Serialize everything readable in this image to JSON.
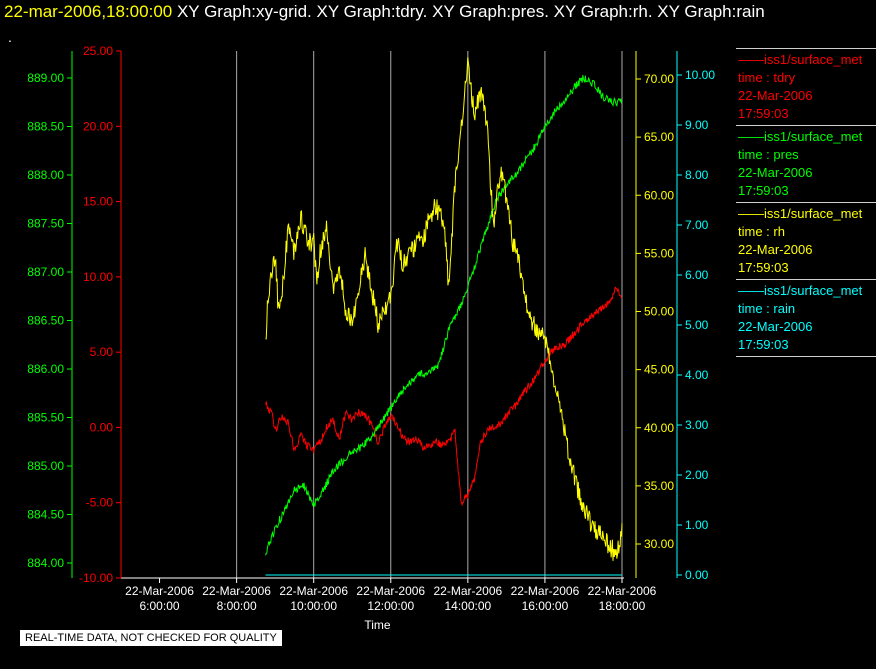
{
  "header": {
    "timestamp": "22-mar-2006,18:00:00",
    "graphs": "XY Graph:xy-grid.  XY Graph:tdry.  XY Graph:pres.  XY Graph:rh.  XY Graph:rain",
    "dot": "."
  },
  "note": "REAL-TIME DATA, NOT CHECKED FOR QUALITY",
  "colors": {
    "tdry": "#ff0000",
    "pres": "#00ff00",
    "rh": "#ffff00",
    "rain": "#00ffff",
    "grid": "#aaaaaa",
    "bottom_axis": "#ffffff"
  },
  "legend": [
    {
      "line1": "iss1/surface_met",
      "line2": "time : tdry",
      "line3": "22-Mar-2006",
      "line4": "17:59:03",
      "color": "#ff0000"
    },
    {
      "line1": "iss1/surface_met",
      "line2": "time : pres",
      "line3": "22-Mar-2006",
      "line4": "17:59:03",
      "color": "#00ff00"
    },
    {
      "line1": "iss1/surface_met",
      "line2": "time : rh",
      "line3": "22-Mar-2006",
      "line4": "17:59:03",
      "color": "#ffff00"
    },
    {
      "line1": "iss1/surface_met",
      "line2": "time : rain",
      "line3": "22-Mar-2006",
      "line4": "17:59:03",
      "color": "#00ffff"
    }
  ],
  "chart_data": {
    "type": "line",
    "xlabel": "Time",
    "x_range": [
      "22-Mar-2006 05:00:00",
      "22-Mar-2006 18:00:00"
    ],
    "x_ticks": [
      {
        "date": "22-Mar-2006",
        "time": "6:00:00"
      },
      {
        "date": "22-Mar-2006",
        "time": "8:00:00"
      },
      {
        "date": "22-Mar-2006",
        "time": "10:00:00"
      },
      {
        "date": "22-Mar-2006",
        "time": "12:00:00"
      },
      {
        "date": "22-Mar-2006",
        "time": "14:00:00"
      },
      {
        "date": "22-Mar-2006",
        "time": "16:00:00"
      },
      {
        "date": "22-Mar-2006",
        "time": "18:00:00"
      }
    ],
    "grid": "vertical",
    "axes": [
      {
        "series": "pres",
        "side": "left",
        "ylim": [
          883.9,
          889.2
        ],
        "ticks": [
          "884.00",
          "884.50",
          "885.00",
          "885.50",
          "886.00",
          "886.50",
          "887.00",
          "887.50",
          "888.00",
          "888.50",
          "889.00"
        ]
      },
      {
        "series": "tdry",
        "side": "left",
        "ylim": [
          -10.0,
          25.0
        ],
        "ticks": [
          "-10.00",
          "-5.00",
          "0.00",
          "5.00",
          "10.00",
          "15.00",
          "20.00",
          "25.00"
        ]
      },
      {
        "series": "rh",
        "side": "right",
        "ylim": [
          27.2,
          72.7
        ],
        "ticks": [
          "30.00",
          "35.00",
          "40.00",
          "45.00",
          "50.00",
          "55.00",
          "60.00",
          "65.00",
          "70.00"
        ]
      },
      {
        "series": "rain",
        "side": "right",
        "ylim": [
          0.0,
          10.35
        ],
        "ticks": [
          "0.00",
          "1.00",
          "2.00",
          "3.00",
          "4.00",
          "5.00",
          "6.00",
          "7.00",
          "8.00",
          "9.00",
          "10.00"
        ]
      }
    ],
    "series": [
      {
        "key": "tdry",
        "x": [
          "08:45",
          "08:55",
          "09:00",
          "09:10",
          "09:20",
          "09:30",
          "09:40",
          "09:50",
          "10:00",
          "10:10",
          "10:20",
          "10:30",
          "10:40",
          "10:50",
          "11:00",
          "11:10",
          "11:20",
          "11:30",
          "11:40",
          "11:50",
          "12:00",
          "12:10",
          "12:20",
          "12:30",
          "12:40",
          "12:50",
          "13:00",
          "13:10",
          "13:20",
          "13:30",
          "13:40",
          "13:45",
          "13:50",
          "14:00",
          "14:10",
          "14:20",
          "14:30",
          "14:40",
          "14:50",
          "15:00",
          "15:15",
          "15:30",
          "15:45",
          "16:00",
          "16:15",
          "16:30",
          "16:45",
          "17:00",
          "17:15",
          "17:30",
          "17:45",
          "17:50",
          "17:55",
          "18:00"
        ],
        "y": [
          1.5,
          1.0,
          -0.2,
          0.8,
          0.3,
          -1.5,
          -0.5,
          -1.2,
          -1.5,
          -1.0,
          0.0,
          0.5,
          -0.8,
          1.0,
          0.5,
          1.0,
          0.8,
          0.2,
          -1.0,
          0.0,
          0.8,
          0.2,
          -0.7,
          -1.0,
          -0.8,
          -1.3,
          -1.2,
          -0.9,
          -1.2,
          -1.0,
          -0.2,
          -3.0,
          -5.0,
          -4.5,
          -3.5,
          -1.0,
          -0.2,
          0.0,
          0.2,
          0.8,
          1.5,
          2.5,
          3.3,
          4.5,
          5.2,
          5.5,
          6.2,
          7.0,
          7.5,
          8.0,
          8.5,
          9.3,
          9.0,
          8.6
        ]
      },
      {
        "key": "pres",
        "x": [
          "08:45",
          "09:00",
          "09:15",
          "09:30",
          "09:45",
          "10:00",
          "10:15",
          "10:30",
          "10:45",
          "11:00",
          "11:15",
          "11:30",
          "11:45",
          "12:00",
          "12:15",
          "12:30",
          "12:45",
          "13:00",
          "13:15",
          "13:30",
          "13:45",
          "14:00",
          "14:15",
          "14:30",
          "14:45",
          "15:00",
          "15:15",
          "15:30",
          "15:45",
          "16:00",
          "16:15",
          "16:30",
          "16:45",
          "17:00",
          "17:15",
          "17:30",
          "17:45",
          "18:00"
        ],
        "y": [
          884.1,
          884.35,
          884.55,
          884.75,
          884.8,
          884.6,
          884.75,
          884.95,
          885.05,
          885.15,
          885.2,
          885.3,
          885.45,
          885.6,
          885.75,
          885.85,
          885.95,
          885.95,
          886.05,
          886.4,
          886.6,
          886.85,
          887.15,
          887.45,
          887.75,
          887.9,
          888.0,
          888.15,
          888.3,
          888.5,
          888.65,
          888.75,
          888.9,
          889.0,
          888.95,
          888.8,
          888.75,
          888.75
        ]
      },
      {
        "key": "rh",
        "x": [
          "08:45",
          "08:50",
          "09:00",
          "09:05",
          "09:10",
          "09:20",
          "09:30",
          "09:40",
          "09:50",
          "10:00",
          "10:05",
          "10:10",
          "10:20",
          "10:30",
          "10:40",
          "10:50",
          "11:00",
          "11:10",
          "11:20",
          "11:30",
          "11:40",
          "11:50",
          "12:00",
          "12:10",
          "12:20",
          "12:30",
          "12:40",
          "12:50",
          "13:00",
          "13:10",
          "13:20",
          "13:25",
          "13:30",
          "13:40",
          "13:50",
          "14:00",
          "14:10",
          "14:20",
          "14:30",
          "14:40",
          "14:50",
          "15:00",
          "15:10",
          "15:20",
          "15:30",
          "15:40",
          "15:50",
          "16:00",
          "16:10",
          "16:20",
          "16:30",
          "16:40",
          "16:50",
          "17:00",
          "17:10",
          "17:20",
          "17:30",
          "17:40",
          "17:45",
          "17:50",
          "17:55",
          "18:00"
        ],
        "y": [
          47.5,
          52.0,
          55.0,
          50.0,
          51.0,
          57.0,
          55.0,
          58.0,
          56.0,
          56.0,
          52.0,
          55.0,
          57.0,
          52.0,
          54.0,
          50.0,
          49.0,
          52.0,
          55.0,
          52.0,
          49.0,
          50.0,
          51.0,
          56.0,
          54.0,
          55.0,
          56.0,
          56.0,
          58.0,
          59.0,
          58.0,
          56.0,
          52.0,
          61.0,
          66.0,
          71.0,
          67.0,
          69.0,
          66.0,
          57.0,
          62.0,
          60.0,
          56.0,
          54.0,
          51.0,
          49.0,
          48.0,
          48.0,
          45.0,
          43.0,
          40.0,
          37.0,
          35.0,
          33.0,
          32.0,
          31.0,
          30.5,
          30.0,
          29.5,
          29.0,
          30.0,
          31.0
        ]
      },
      {
        "key": "rain",
        "x": [
          "08:45",
          "18:00"
        ],
        "y": [
          0.0,
          0.0
        ]
      }
    ]
  }
}
